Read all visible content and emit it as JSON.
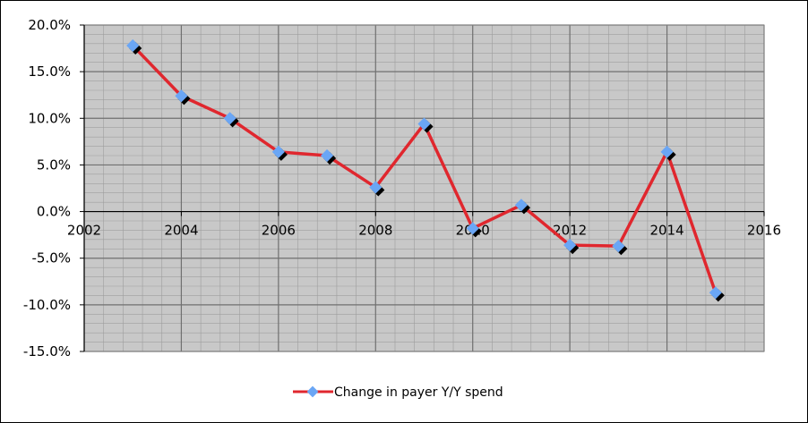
{
  "chart_data": {
    "type": "line",
    "x": [
      2003,
      2004,
      2005,
      2006,
      2007,
      2008,
      2009,
      2010,
      2011,
      2012,
      2013,
      2014,
      2015
    ],
    "series": [
      {
        "name": "Change in payer Y/Y spend",
        "values": [
          17.8,
          12.4,
          10.0,
          6.4,
          6.0,
          2.6,
          9.4,
          -1.8,
          0.7,
          -3.6,
          -3.7,
          6.4,
          -8.7
        ],
        "line_color": "#E0272E",
        "marker_color": "#6AA6F5",
        "marker_shadow_color": "#000000"
      }
    ],
    "xlim": [
      2002,
      2016
    ],
    "ylim": [
      -15,
      20
    ],
    "x_ticks": [
      "2002",
      "2004",
      "2006",
      "2008",
      "2010",
      "2012",
      "2014",
      "2016"
    ],
    "y_ticks": [
      "20.0%",
      "15.0%",
      "10.0%",
      "5.0%",
      "0.0%",
      "-5.0%",
      "-10.0%",
      "-15.0%"
    ],
    "grid": true,
    "plot_background": "#C8C8C8",
    "legend_position": "bottom",
    "title": "",
    "xlabel": "",
    "ylabel": ""
  }
}
